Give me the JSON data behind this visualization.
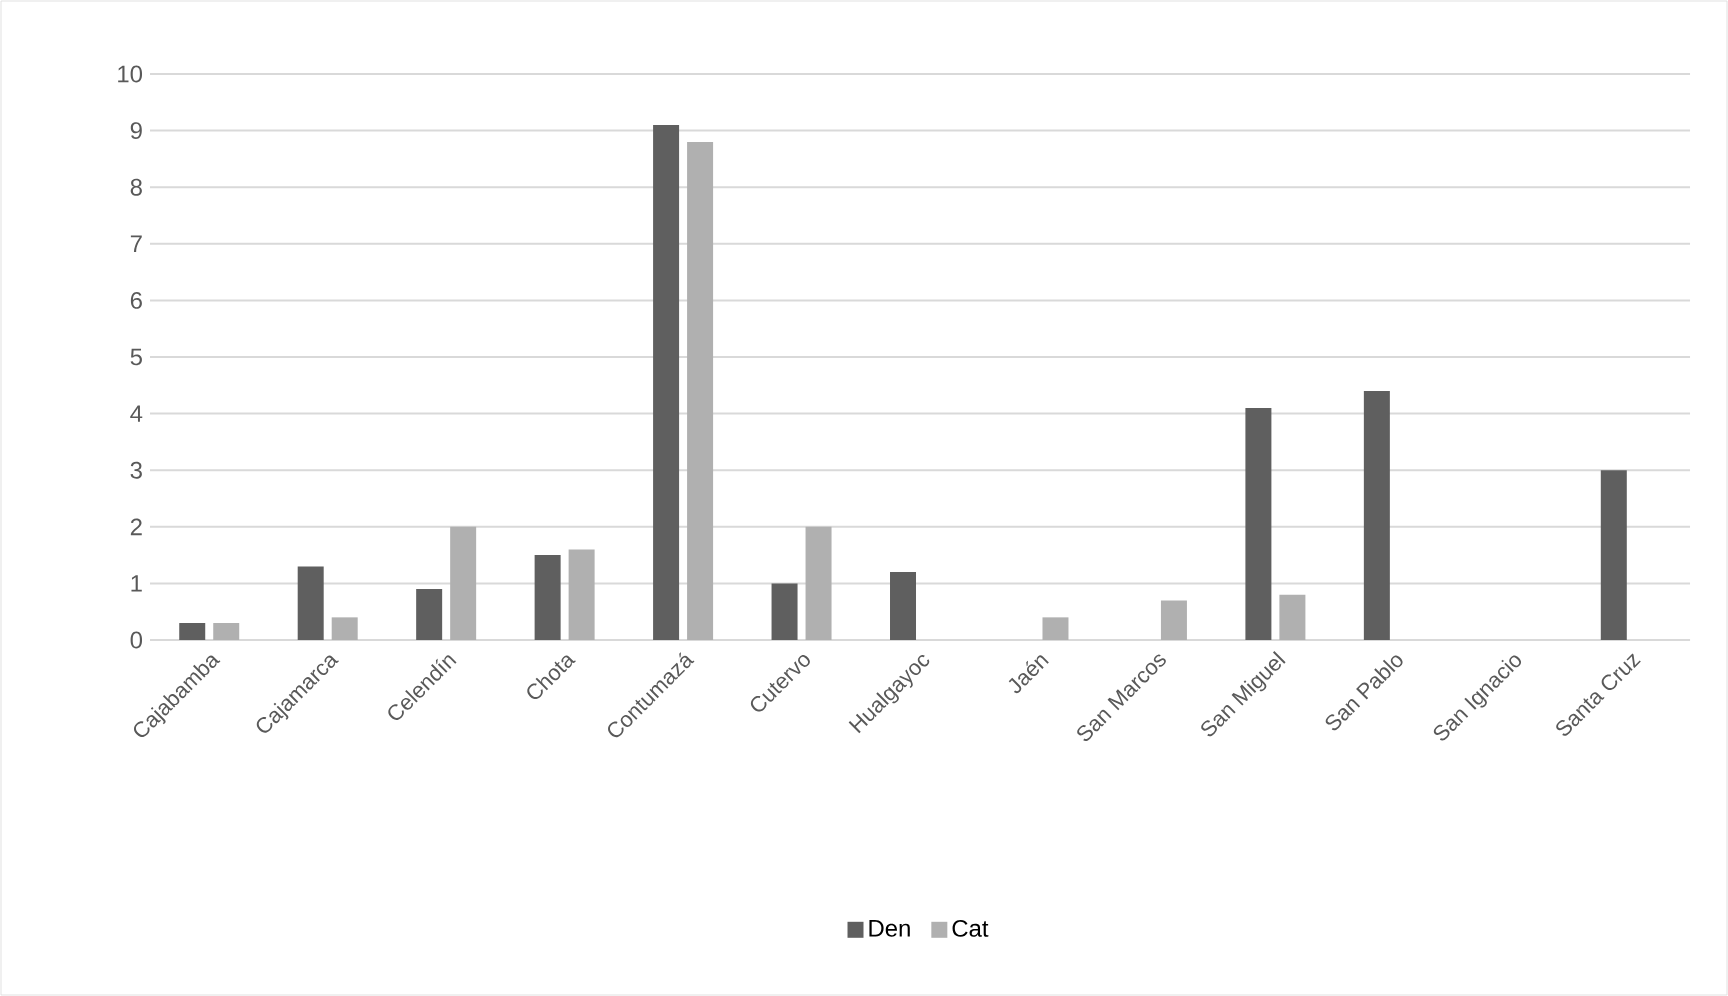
{
  "chart_data": {
    "type": "bar",
    "categories": [
      "Cajabamba",
      "Cajamarca",
      "Celendín",
      "Chota",
      "Contumazá",
      "Cutervo",
      "Hualgayoc",
      "Jaén",
      "San Marcos",
      "San Miguel",
      "San Pablo",
      "San Ignacio",
      "Santa Cruz"
    ],
    "series": [
      {
        "name": "Den",
        "color": "#5f5f5f",
        "values": [
          0.3,
          1.3,
          0.9,
          1.5,
          9.1,
          1.0,
          1.2,
          0,
          0,
          4.1,
          4.4,
          0,
          3.0
        ]
      },
      {
        "name": "Cat",
        "color": "#b0b0b0",
        "values": [
          0.3,
          0.4,
          2.0,
          1.6,
          8.8,
          2.0,
          0,
          0.4,
          0.7,
          0.8,
          0,
          0,
          0
        ]
      }
    ],
    "ylim": [
      0,
      10
    ],
    "yticks": [
      0,
      1,
      2,
      3,
      4,
      5,
      6,
      7,
      8,
      9,
      10
    ],
    "grid": "y",
    "legend": "bottom"
  }
}
